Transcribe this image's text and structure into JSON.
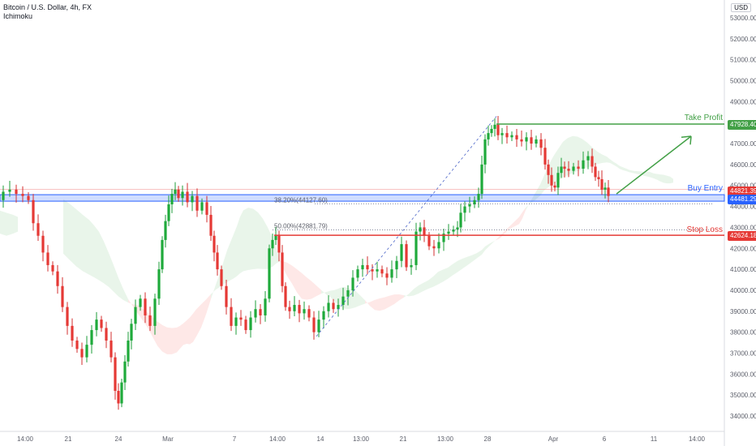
{
  "header": {
    "symbol": "Bitcoin / U.S. Dollar, 4h, FX",
    "indicator": "Ichimoku",
    "currency": "USD"
  },
  "chart_data": {
    "type": "candlestick",
    "ylim": [
      33600,
      53600
    ],
    "y_ticks": [
      34000,
      35000,
      36000,
      37000,
      38000,
      39000,
      40000,
      41000,
      42000,
      43000,
      44000,
      45000,
      46000,
      47000,
      48000,
      49000,
      50000,
      51000,
      52000,
      53000
    ],
    "y_tick_labels": [
      "34000.00",
      "35000.00",
      "36000.00",
      "37000.00",
      "38000.00",
      "39000.00",
      "40000.00",
      "41000.00",
      "42000.00",
      "43000.00",
      "44000.00",
      "45000.00",
      "46000.00",
      "47000.00",
      "48000.00",
      "49000.00",
      "50000.00",
      "51000.00",
      "52000.00",
      "53000.00"
    ],
    "x_range": [
      0,
      880
    ],
    "x_ticks": [
      {
        "pos": 31,
        "label": "14:00"
      },
      {
        "pos": 84,
        "label": "21"
      },
      {
        "pos": 146,
        "label": "24"
      },
      {
        "pos": 207,
        "label": "Mar"
      },
      {
        "pos": 289,
        "label": "7"
      },
      {
        "pos": 342,
        "label": "14:00"
      },
      {
        "pos": 395,
        "label": "14"
      },
      {
        "pos": 445,
        "label": "13:00"
      },
      {
        "pos": 497,
        "label": "21"
      },
      {
        "pos": 549,
        "label": "13:00"
      },
      {
        "pos": 601,
        "label": "28"
      },
      {
        "pos": 682,
        "label": "Apr"
      },
      {
        "pos": 745,
        "label": "6"
      },
      {
        "pos": 806,
        "label": "11"
      },
      {
        "pos": 859,
        "label": "14:00"
      }
    ],
    "price_path": [
      [
        0,
        44300
      ],
      [
        8,
        44700
      ],
      [
        16,
        44800
      ],
      [
        24,
        44600
      ],
      [
        32,
        44500
      ],
      [
        38,
        44300
      ],
      [
        44,
        43200
      ],
      [
        50,
        42600
      ],
      [
        56,
        41800
      ],
      [
        62,
        41200
      ],
      [
        68,
        40900
      ],
      [
        74,
        40200
      ],
      [
        80,
        39200
      ],
      [
        86,
        38300
      ],
      [
        92,
        37600
      ],
      [
        98,
        37200
      ],
      [
        104,
        36800
      ],
      [
        110,
        37400
      ],
      [
        116,
        38100
      ],
      [
        122,
        38600
      ],
      [
        128,
        38200
      ],
      [
        134,
        37600
      ],
      [
        140,
        36800
      ],
      [
        144,
        35200
      ],
      [
        148,
        34600
      ],
      [
        152,
        35600
      ],
      [
        156,
        36600
      ],
      [
        160,
        37600
      ],
      [
        164,
        38400
      ],
      [
        170,
        39200
      ],
      [
        176,
        39600
      ],
      [
        182,
        38800
      ],
      [
        188,
        38300
      ],
      [
        194,
        39600
      ],
      [
        198,
        41000
      ],
      [
        202,
        42400
      ],
      [
        206,
        43300
      ],
      [
        210,
        44100
      ],
      [
        214,
        44600
      ],
      [
        218,
        44800
      ],
      [
        222,
        44400
      ],
      [
        228,
        44700
      ],
      [
        234,
        44200
      ],
      [
        240,
        44500
      ],
      [
        246,
        43800
      ],
      [
        252,
        44200
      ],
      [
        258,
        43600
      ],
      [
        262,
        42600
      ],
      [
        266,
        41800
      ],
      [
        270,
        41000
      ],
      [
        276,
        40200
      ],
      [
        282,
        39200
      ],
      [
        288,
        38300
      ],
      [
        294,
        38700
      ],
      [
        300,
        38600
      ],
      [
        306,
        38100
      ],
      [
        312,
        38700
      ],
      [
        318,
        39100
      ],
      [
        324,
        38800
      ],
      [
        330,
        39600
      ],
      [
        334,
        42000
      ],
      [
        338,
        42400
      ],
      [
        342,
        42600
      ],
      [
        346,
        41800
      ],
      [
        350,
        40200
      ],
      [
        354,
        39200
      ],
      [
        360,
        39000
      ],
      [
        366,
        39300
      ],
      [
        372,
        38900
      ],
      [
        378,
        39100
      ],
      [
        384,
        38700
      ],
      [
        390,
        38000
      ],
      [
        396,
        38600
      ],
      [
        402,
        39000
      ],
      [
        408,
        39400
      ],
      [
        414,
        39100
      ],
      [
        420,
        39300
      ],
      [
        426,
        39700
      ],
      [
        432,
        40000
      ],
      [
        438,
        40600
      ],
      [
        444,
        41000
      ],
      [
        450,
        41200
      ],
      [
        456,
        41000
      ],
      [
        462,
        40900
      ],
      [
        468,
        41000
      ],
      [
        474,
        40800
      ],
      [
        480,
        40600
      ],
      [
        486,
        41000
      ],
      [
        492,
        41400
      ],
      [
        498,
        42200
      ],
      [
        504,
        41100
      ],
      [
        510,
        41200
      ],
      [
        516,
        42800
      ],
      [
        520,
        43000
      ],
      [
        526,
        42600
      ],
      [
        532,
        42100
      ],
      [
        538,
        42000
      ],
      [
        544,
        42300
      ],
      [
        550,
        42700
      ],
      [
        556,
        42800
      ],
      [
        562,
        42900
      ],
      [
        566,
        43000
      ],
      [
        570,
        43700
      ],
      [
        576,
        44000
      ],
      [
        582,
        44100
      ],
      [
        588,
        44300
      ],
      [
        592,
        44600
      ],
      [
        596,
        46000
      ],
      [
        600,
        47200
      ],
      [
        604,
        47500
      ],
      [
        608,
        47700
      ],
      [
        612,
        47900
      ],
      [
        616,
        47400
      ],
      [
        622,
        47500
      ],
      [
        628,
        47300
      ],
      [
        634,
        47400
      ],
      [
        640,
        47200
      ],
      [
        646,
        47100
      ],
      [
        652,
        47300
      ],
      [
        658,
        47000
      ],
      [
        664,
        47200
      ],
      [
        670,
        46800
      ],
      [
        674,
        46000
      ],
      [
        678,
        45500
      ],
      [
        682,
        45000
      ],
      [
        686,
        44900
      ],
      [
        690,
        45600
      ],
      [
        694,
        45900
      ],
      [
        698,
        45800
      ],
      [
        704,
        45700
      ],
      [
        710,
        45900
      ],
      [
        716,
        45800
      ],
      [
        722,
        46200
      ],
      [
        728,
        46400
      ],
      [
        732,
        45900
      ],
      [
        736,
        45400
      ],
      [
        740,
        45300
      ],
      [
        744,
        44800
      ],
      [
        748,
        44900
      ],
      [
        752,
        44500
      ]
    ],
    "cloud_green": [
      [
        [
          0,
          43800
        ],
        [
          8,
          43700
        ],
        [
          16,
          43600
        ],
        [
          22,
          43500
        ]
      ],
      [
        [
          0,
          42700
        ],
        [
          8,
          42600
        ],
        [
          16,
          42700
        ],
        [
          22,
          42800
        ]
      ]
    ],
    "levels": {
      "take_profit": {
        "label": "Take Profit",
        "value": 47928.4,
        "badge": "47928.40",
        "color": "#43a047"
      },
      "current": {
        "value": 44821.39,
        "badge": "44821.39",
        "color": "#e53935"
      },
      "buy_entry": {
        "label": "Buy Entry",
        "value": 44481.29,
        "badge": "44481.29",
        "color": "#2962ff"
      },
      "stop_loss": {
        "label": "Stop Loss",
        "value": 42624.18,
        "badge": "42624.18",
        "color": "#e53935"
      }
    },
    "fib": [
      {
        "label": "38.20%(44127.60)",
        "value": 44127.6
      },
      {
        "label": "50.00%(42881.79)",
        "value": 42881.79
      }
    ]
  }
}
